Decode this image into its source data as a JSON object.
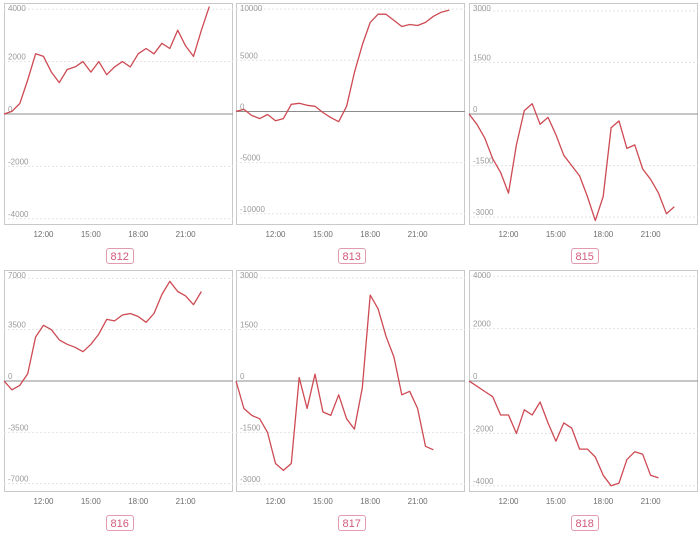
{
  "colors": {
    "line": "#cd4a53",
    "badge": "#d05b7c",
    "frame": "#c9c9c9"
  },
  "chart_data": [
    {
      "type": "line",
      "label": "812",
      "x_ticks": [
        "12:00",
        "15:00",
        "18:00",
        "21:00"
      ],
      "y_ticks": [
        4000,
        2000,
        0,
        -2000,
        -4000
      ],
      "ylim": [
        -4200,
        4200
      ],
      "x": [
        9.5,
        10,
        10.5,
        11,
        11.5,
        12,
        12.5,
        13,
        13.5,
        14,
        14.5,
        15,
        15.5,
        16,
        16.5,
        17,
        17.5,
        18,
        18.5,
        19,
        19.5,
        20,
        20.5,
        21,
        21.5,
        22,
        22.5
      ],
      "values": [
        0,
        100,
        400,
        1300,
        2300,
        2200,
        1600,
        1200,
        1700,
        1800,
        2000,
        1600,
        2000,
        1500,
        1800,
        2000,
        1800,
        2300,
        2500,
        2300,
        2700,
        2500,
        3200,
        2600,
        2200,
        3200,
        4100
      ]
    },
    {
      "type": "line",
      "label": "813",
      "x_ticks": [
        "12:00",
        "15:00",
        "18:00",
        "21:00"
      ],
      "y_ticks": [
        10000,
        5000,
        0,
        -5000,
        -10000
      ],
      "ylim": [
        -11000,
        10500
      ],
      "x": [
        9.5,
        10,
        10.5,
        11,
        11.5,
        12,
        12.5,
        13,
        13.5,
        14,
        14.5,
        15,
        15.5,
        16,
        16.5,
        17,
        17.5,
        18,
        18.5,
        19,
        19.5,
        20,
        20.5,
        21,
        21.5,
        22,
        22.5,
        23
      ],
      "values": [
        0,
        200,
        -400,
        -700,
        -300,
        -900,
        -700,
        700,
        800,
        600,
        500,
        -100,
        -600,
        -1000,
        500,
        3800,
        6500,
        8700,
        9500,
        9500,
        8900,
        8300,
        8500,
        8400,
        8700,
        9300,
        9700,
        9900
      ]
    },
    {
      "type": "line",
      "label": "815",
      "x_ticks": [
        "12:00",
        "15:00",
        "18:00",
        "21:00"
      ],
      "y_ticks": [
        3000,
        1500,
        0,
        -1500,
        -3000
      ],
      "ylim": [
        -3200,
        3200
      ],
      "x": [
        9.5,
        10,
        10.5,
        11,
        11.5,
        12,
        12.5,
        13,
        13.5,
        14,
        14.5,
        15,
        15.5,
        16,
        16.5,
        17,
        17.5,
        18,
        18.5,
        19,
        19.5,
        20,
        20.5,
        21,
        21.5,
        22,
        22.5
      ],
      "values": [
        0,
        -300,
        -700,
        -1300,
        -1700,
        -2300,
        -900,
        100,
        300,
        -300,
        -100,
        -600,
        -1200,
        -1500,
        -1800,
        -2400,
        -3100,
        -2400,
        -400,
        -200,
        -1000,
        -900,
        -1600,
        -1900,
        -2300,
        -2900,
        -2700
      ]
    },
    {
      "type": "line",
      "label": "816",
      "x_ticks": [
        "12:00",
        "15:00",
        "18:00",
        "21:00"
      ],
      "y_ticks": [
        7000,
        3500,
        0,
        -3500,
        -7000
      ],
      "ylim": [
        -7500,
        7500
      ],
      "x": [
        9.5,
        10,
        10.5,
        11,
        11.5,
        12,
        12.5,
        13,
        13.5,
        14,
        14.5,
        15,
        15.5,
        16,
        16.5,
        17,
        17.5,
        18,
        18.5,
        19,
        19.5,
        20,
        20.5,
        21,
        21.5,
        22
      ],
      "values": [
        0,
        -600,
        -300,
        500,
        3000,
        3800,
        3500,
        2800,
        2500,
        2300,
        2000,
        2500,
        3200,
        4200,
        4100,
        4500,
        4600,
        4400,
        4000,
        4600,
        5900,
        6800,
        6100,
        5800,
        5200,
        6100
      ]
    },
    {
      "type": "line",
      "label": "817",
      "x_ticks": [
        "12:00",
        "15:00",
        "18:00",
        "21:00"
      ],
      "y_ticks": [
        3000,
        1500,
        0,
        -1500,
        -3000
      ],
      "ylim": [
        -3200,
        3200
      ],
      "x": [
        9.5,
        10,
        10.5,
        11,
        11.5,
        12,
        12.5,
        13,
        13.5,
        14,
        14.5,
        15,
        15.5,
        16,
        16.5,
        17,
        17.5,
        18,
        18.5,
        19,
        19.5,
        20,
        20.5,
        21,
        21.5,
        22
      ],
      "values": [
        0,
        -800,
        -1000,
        -1100,
        -1500,
        -2400,
        -2600,
        -2400,
        100,
        -800,
        200,
        -900,
        -1000,
        -400,
        -1100,
        -1400,
        -200,
        2500,
        2100,
        1300,
        700,
        -400,
        -300,
        -800,
        -1900,
        -2000
      ]
    },
    {
      "type": "line",
      "label": "818",
      "x_ticks": [
        "12:00",
        "15:00",
        "18:00",
        "21:00"
      ],
      "y_ticks": [
        4000,
        2000,
        0,
        -2000,
        -4000
      ],
      "ylim": [
        -4200,
        4200
      ],
      "x": [
        9.5,
        10,
        10.5,
        11,
        11.5,
        12,
        12.5,
        13,
        13.5,
        14,
        14.5,
        15,
        15.5,
        16,
        16.5,
        17,
        17.5,
        18,
        18.5,
        19,
        19.5,
        20,
        20.5,
        21,
        21.5
      ],
      "values": [
        0,
        -200,
        -400,
        -600,
        -1300,
        -1300,
        -2000,
        -1100,
        -1300,
        -800,
        -1600,
        -2300,
        -1600,
        -1800,
        -2600,
        -2600,
        -2900,
        -3600,
        -4000,
        -3900,
        -3000,
        -2700,
        -2800,
        -3600,
        -3700
      ]
    }
  ]
}
